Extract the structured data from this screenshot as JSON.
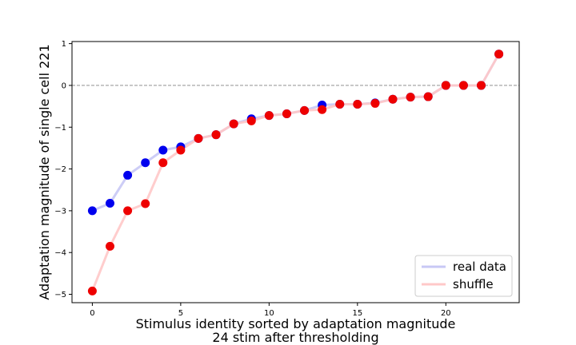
{
  "chart_data": {
    "type": "line",
    "xlabel_lines": [
      "Stimulus identity sorted by adaptation magnitude",
      "24 stim after thresholding"
    ],
    "ylabel": "Adaptation magnitude of single cell 221",
    "xlim": [
      -1.15,
      24.15
    ],
    "ylim": [
      -5.2,
      1.05
    ],
    "xticks": [
      0,
      5,
      10,
      15,
      20
    ],
    "yticks": [
      -5,
      -4,
      -3,
      -2,
      -1,
      0,
      1
    ],
    "reference_line_y": 0,
    "x": [
      0,
      1,
      2,
      3,
      4,
      5,
      6,
      7,
      8,
      9,
      10,
      11,
      12,
      13,
      14,
      15,
      16,
      17,
      18,
      19,
      20,
      21,
      22,
      23
    ],
    "series": [
      {
        "name": "real data",
        "line_color": "#c8c8f5",
        "marker_color": "#0000ee",
        "values": [
          -3.0,
          -2.82,
          -2.15,
          -1.85,
          -1.55,
          -1.47,
          -1.27,
          -1.18,
          -0.92,
          -0.8,
          -0.72,
          -0.68,
          -0.6,
          -0.47,
          -0.45,
          -0.45,
          -0.42,
          -0.33,
          -0.28,
          -0.27,
          0.0,
          0.0,
          0.0,
          0.75
        ]
      },
      {
        "name": "shuffle",
        "line_color": "#ffc8c8",
        "marker_color": "#ee0000",
        "values": [
          -4.92,
          -3.85,
          -3.0,
          -2.83,
          -1.85,
          -1.55,
          -1.27,
          -1.18,
          -0.92,
          -0.85,
          -0.72,
          -0.68,
          -0.6,
          -0.58,
          -0.45,
          -0.45,
          -0.43,
          -0.33,
          -0.28,
          -0.27,
          0.0,
          0.0,
          0.0,
          0.75
        ]
      }
    ],
    "legend_location": "lower-right",
    "grid": false
  }
}
